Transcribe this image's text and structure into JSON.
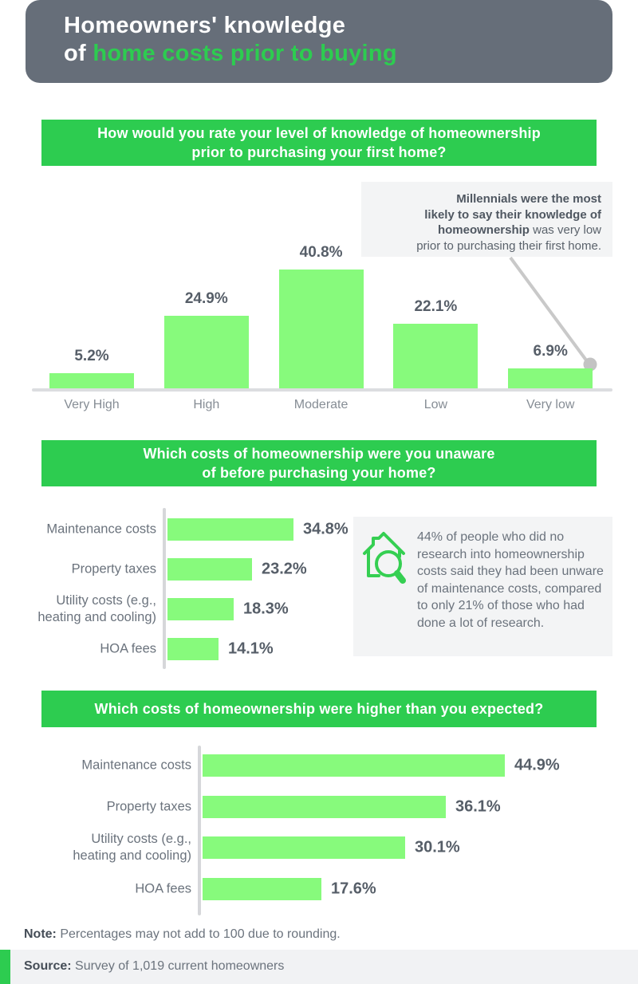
{
  "header": {
    "title_line1": "Homeowners' knowledge",
    "title_line2_white": "of ",
    "title_line2_green": "home costs prior to buying"
  },
  "banners": {
    "q1_line1": "How would you rate your level of knowledge of homeownership",
    "q1_line2": "prior to purchasing your first home?",
    "q2_line1": "Which costs of homeownership were you unaware",
    "q2_line2": "of before purchasing your home?",
    "q3_line1": "Which costs of homeownership were higher than you expected?"
  },
  "annotation": {
    "line1_bold": "Millennials were the most",
    "line2_bold": "likely to say their knowledge of",
    "line3_bold": "homeownership",
    "line3_regular": " was very low",
    "line4_regular": "prior to purchasing their first home."
  },
  "info_box": {
    "text": "44% of people who did no research into homeownership costs said they had been unware of maintenance costs, compared to only 21% of those who had done a lot of research."
  },
  "note": {
    "label": "Note:",
    "text": " Percentages may not add to 100 due to rounding."
  },
  "source": {
    "label": "Source:",
    "text": " Survey of 1,019 current homeowners"
  },
  "colors": {
    "banner_green": "#2dcc50",
    "bar_green": "#87fa7c",
    "header_gray": "#666e79",
    "box_gray": "#f3f4f5",
    "leader_gray": "#c9c9c9"
  },
  "chart_data": [
    {
      "id": "knowledge-level",
      "type": "bar",
      "orientation": "vertical",
      "title": "How would you rate your level of knowledge of homeownership prior to purchasing your first home?",
      "categories": [
        "Very High",
        "High",
        "Moderate",
        "Low",
        "Very low"
      ],
      "values": [
        5.2,
        24.9,
        40.8,
        22.1,
        6.9
      ],
      "value_suffix": "%",
      "ylim": [
        0,
        45
      ],
      "grid": false,
      "legend": false
    },
    {
      "id": "costs-unaware",
      "type": "bar",
      "orientation": "horizontal",
      "title": "Which costs of homeownership were you unaware of before purchasing your home?",
      "categories": [
        "Maintenance costs",
        "Property taxes",
        "Utility costs (e.g., heating and cooling)",
        "HOA fees"
      ],
      "categories_wrapped": [
        "Maintenance costs",
        "Property taxes",
        "Utility costs (e.g.,\nheating and cooling)",
        "HOA fees"
      ],
      "values": [
        34.8,
        23.2,
        18.3,
        14.1
      ],
      "value_suffix": "%",
      "xlim": [
        0,
        40
      ],
      "grid": false,
      "legend": false
    },
    {
      "id": "costs-higher",
      "type": "bar",
      "orientation": "horizontal",
      "title": "Which costs of homeownership were higher than you expected?",
      "categories": [
        "Maintenance costs",
        "Property taxes",
        "Utility costs (e.g., heating and cooling)",
        "HOA fees"
      ],
      "categories_wrapped": [
        "Maintenance costs",
        "Property taxes",
        "Utility costs (e.g.,\nheating and cooling)",
        "HOA fees"
      ],
      "values": [
        44.9,
        36.1,
        30.1,
        17.6
      ],
      "value_suffix": "%",
      "xlim": [
        0,
        50
      ],
      "grid": false,
      "legend": false
    }
  ]
}
